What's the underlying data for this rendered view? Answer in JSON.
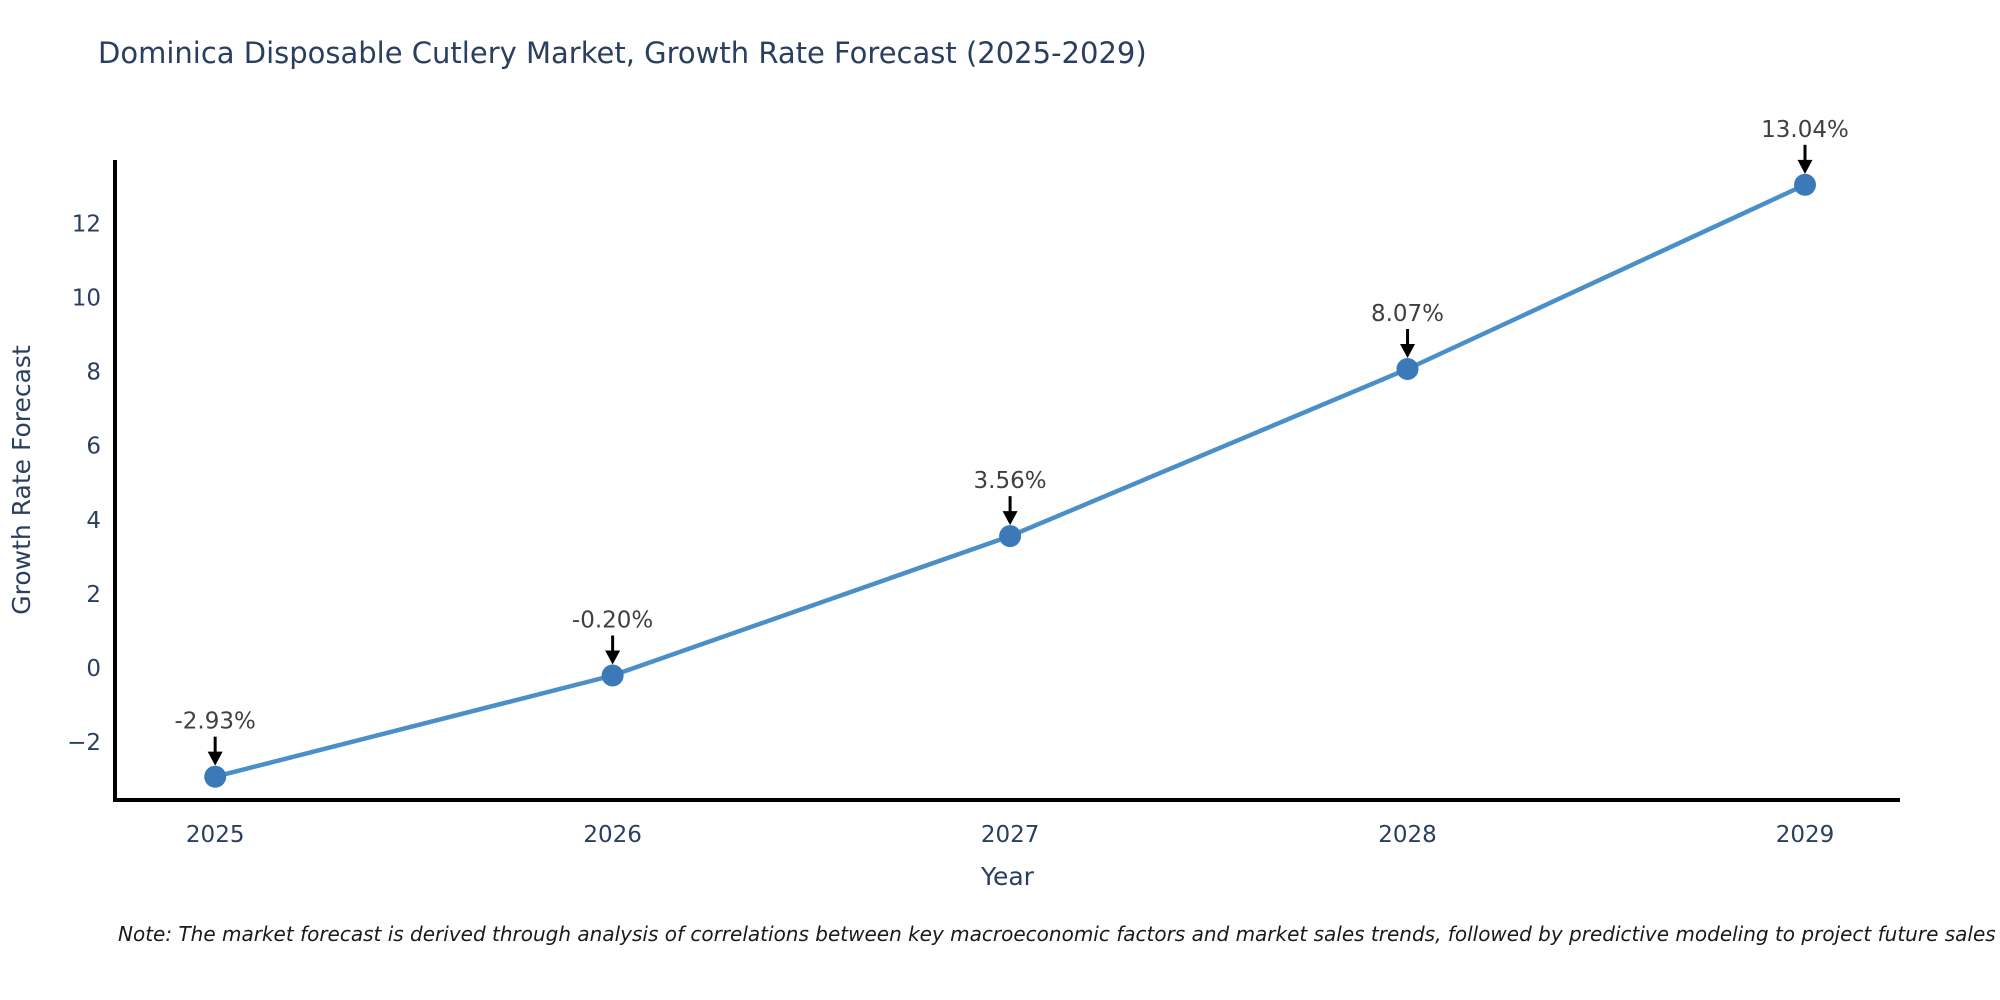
{
  "note": "Note: The market forecast is derived through analysis of correlations between key macroeconomic factors and market sales trends, followed by predictive modeling to project future sales",
  "chart_data": {
    "type": "line",
    "title": "Dominica Disposable Cutlery Market, Growth Rate Forecast (2025-2029)",
    "xlabel": "Year",
    "ylabel": "Growth Rate Forecast",
    "x": [
      2025,
      2026,
      2027,
      2028,
      2029
    ],
    "series": [
      {
        "name": "Growth Rate Forecast",
        "values": [
          -2.93,
          -0.2,
          3.56,
          8.07,
          13.04
        ]
      }
    ],
    "point_labels": [
      "-2.93%",
      "-0.20%",
      "3.56%",
      "8.07%",
      "13.04%"
    ],
    "xtick_labels": [
      "2025",
      "2026",
      "2027",
      "2028",
      "2029"
    ],
    "yticks": [
      -2,
      0,
      2,
      4,
      6,
      8,
      10,
      12
    ],
    "ytick_labels": [
      "−2",
      "0",
      "2",
      "4",
      "6",
      "8",
      "10",
      "12"
    ],
    "xlim": [
      2024.748,
      2029.239
    ],
    "ylim": [
      -3.56,
      13.71
    ],
    "grid": false,
    "legend": "none",
    "colors": {
      "line": "#4a8fc7",
      "marker": "#3b79b8",
      "axis": "#000000",
      "text": "#2a3f5f",
      "annotation": "#404040"
    }
  }
}
